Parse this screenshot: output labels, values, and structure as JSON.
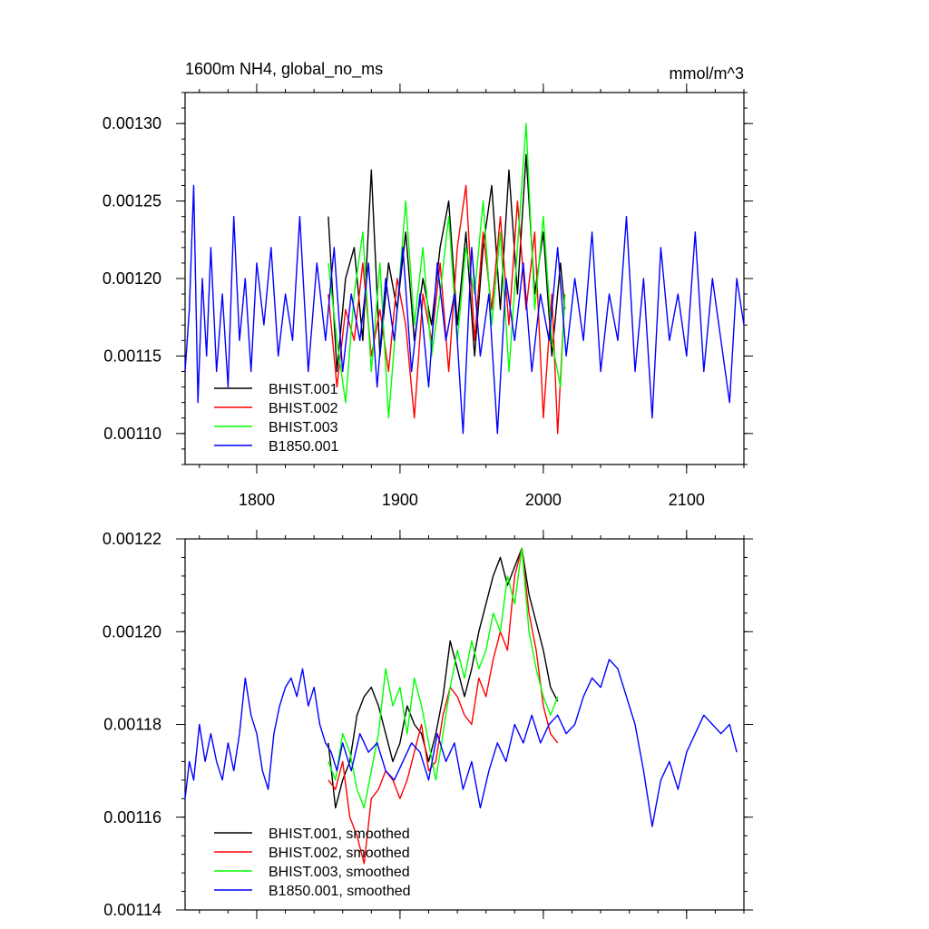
{
  "chart_data": [
    {
      "type": "line",
      "title": "1600m NH4, global_no_ms",
      "units": "mmol/m^3",
      "xlim": [
        1750,
        2140
      ],
      "ylim": [
        0.00108,
        0.00132
      ],
      "x_ticks": [
        1800,
        1900,
        2000,
        2100
      ],
      "x_tick_labels": [
        "1800",
        "1900",
        "2000",
        "2100"
      ],
      "y_ticks": [
        0.0011,
        0.00115,
        0.0012,
        0.00125,
        0.0013
      ],
      "y_tick_labels": [
        "0.00110",
        "0.00115",
        "0.00120",
        "0.00125",
        "0.00130"
      ],
      "legend_position": "bottom-left",
      "series": [
        {
          "name": "BHIST.001",
          "color": "#000000",
          "x": [
            1850,
            1856,
            1862,
            1868,
            1874,
            1880,
            1886,
            1892,
            1898,
            1904,
            1910,
            1916,
            1922,
            1928,
            1934,
            1940,
            1946,
            1952,
            1958,
            1964,
            1970,
            1976,
            1982,
            1988,
            1994,
            2000,
            2006,
            2012,
            2015
          ],
          "y": [
            0.00124,
            0.00114,
            0.0012,
            0.00122,
            0.00116,
            0.00127,
            0.00115,
            0.00121,
            0.00118,
            0.00123,
            0.00116,
            0.0012,
            0.00117,
            0.00122,
            0.00125,
            0.00117,
            0.00123,
            0.00115,
            0.00122,
            0.00126,
            0.00118,
            0.00127,
            0.00119,
            0.00128,
            0.00119,
            0.00123,
            0.00115,
            0.00121,
            0.00118
          ]
        },
        {
          "name": "BHIST.002",
          "color": "#ff0000",
          "x": [
            1850,
            1856,
            1862,
            1868,
            1874,
            1880,
            1886,
            1892,
            1898,
            1904,
            1910,
            1916,
            1922,
            1928,
            1934,
            1940,
            1946,
            1952,
            1958,
            1964,
            1970,
            1976,
            1982,
            1988,
            1994,
            2000,
            2006,
            2010,
            2015
          ],
          "y": [
            0.00119,
            0.00113,
            0.00118,
            0.00116,
            0.00121,
            0.00115,
            0.00118,
            0.00114,
            0.0012,
            0.00117,
            0.00111,
            0.00119,
            0.00116,
            0.00121,
            0.00114,
            0.00122,
            0.00126,
            0.00116,
            0.00123,
            0.00118,
            0.00124,
            0.00117,
            0.00125,
            0.00118,
            0.00123,
            0.00111,
            0.00119,
            0.0011,
            0.00119
          ]
        },
        {
          "name": "BHIST.003",
          "color": "#00ff00",
          "x": [
            1850,
            1856,
            1862,
            1868,
            1874,
            1880,
            1886,
            1892,
            1898,
            1904,
            1910,
            1916,
            1922,
            1928,
            1934,
            1940,
            1946,
            1952,
            1958,
            1964,
            1970,
            1976,
            1982,
            1988,
            1994,
            2000,
            2006,
            2012,
            2015
          ],
          "y": [
            0.00121,
            0.00116,
            0.00112,
            0.00119,
            0.00123,
            0.00114,
            0.00121,
            0.00111,
            0.00118,
            0.00125,
            0.00117,
            0.00122,
            0.00115,
            0.00119,
            0.00124,
            0.00116,
            0.00122,
            0.00119,
            0.00125,
            0.00117,
            0.00123,
            0.00114,
            0.00122,
            0.0013,
            0.00118,
            0.00124,
            0.00116,
            0.00113,
            0.00119
          ]
        },
        {
          "name": "B1850.001",
          "color": "#0000ff",
          "x": [
            1750,
            1753,
            1756,
            1759,
            1762,
            1765,
            1768,
            1772,
            1776,
            1780,
            1784,
            1788,
            1792,
            1796,
            1800,
            1805,
            1810,
            1815,
            1820,
            1825,
            1830,
            1836,
            1842,
            1848,
            1854,
            1860,
            1866,
            1872,
            1878,
            1884,
            1890,
            1896,
            1902,
            1908,
            1914,
            1920,
            1926,
            1932,
            1938,
            1944,
            1950,
            1956,
            1962,
            1968,
            1974,
            1980,
            1986,
            1992,
            1998,
            2004,
            2010,
            2016,
            2022,
            2028,
            2034,
            2040,
            2046,
            2052,
            2058,
            2064,
            2070,
            2076,
            2082,
            2088,
            2094,
            2100,
            2106,
            2112,
            2118,
            2124,
            2130,
            2135,
            2140
          ],
          "y": [
            0.00114,
            0.00118,
            0.00126,
            0.00112,
            0.0012,
            0.00115,
            0.00122,
            0.00114,
            0.00119,
            0.00113,
            0.00124,
            0.00116,
            0.0012,
            0.00114,
            0.00121,
            0.00117,
            0.00122,
            0.00115,
            0.00119,
            0.00116,
            0.00124,
            0.00114,
            0.00121,
            0.00116,
            0.00122,
            0.00114,
            0.00119,
            0.00116,
            0.00121,
            0.00113,
            0.0012,
            0.00116,
            0.00122,
            0.00114,
            0.00119,
            0.00113,
            0.00121,
            0.00116,
            0.00119,
            0.0011,
            0.00122,
            0.00115,
            0.00119,
            0.0011,
            0.0012,
            0.00116,
            0.00121,
            0.00114,
            0.00119,
            0.00116,
            0.00122,
            0.00115,
            0.0012,
            0.00116,
            0.00123,
            0.00114,
            0.00119,
            0.00116,
            0.00124,
            0.00114,
            0.0012,
            0.00111,
            0.00122,
            0.00116,
            0.00119,
            0.00115,
            0.00123,
            0.00114,
            0.0012,
            0.00116,
            0.00112,
            0.0012,
            0.00117
          ]
        }
      ]
    },
    {
      "type": "line",
      "xlim": [
        1750,
        2140
      ],
      "ylim": [
        0.00114,
        0.00122
      ],
      "x_ticks": [
        1800,
        1900,
        2000,
        2100
      ],
      "y_ticks": [
        0.00114,
        0.00116,
        0.00118,
        0.0012,
        0.00122
      ],
      "y_tick_labels": [
        "0.00114",
        "0.00116",
        "0.00118",
        "0.00120",
        "0.00122"
      ],
      "legend_position": "bottom-left",
      "series": [
        {
          "name": "BHIST.001, smoothed",
          "color": "#000000",
          "x": [
            1850,
            1855,
            1860,
            1865,
            1870,
            1875,
            1880,
            1885,
            1890,
            1895,
            1900,
            1905,
            1910,
            1915,
            1920,
            1925,
            1930,
            1935,
            1940,
            1945,
            1950,
            1955,
            1960,
            1965,
            1970,
            1975,
            1980,
            1985,
            1990,
            1995,
            2000,
            2005,
            2010
          ],
          "y": [
            0.001176,
            0.001162,
            0.001168,
            0.001172,
            0.001182,
            0.001186,
            0.001188,
            0.001184,
            0.001178,
            0.001172,
            0.001176,
            0.001184,
            0.00118,
            0.001178,
            0.001172,
            0.001178,
            0.001186,
            0.001198,
            0.001192,
            0.001186,
            0.001192,
            0.0012,
            0.001206,
            0.001212,
            0.001216,
            0.00121,
            0.001214,
            0.001218,
            0.001208,
            0.001202,
            0.001196,
            0.001188,
            0.001185
          ]
        },
        {
          "name": "BHIST.002, smoothed",
          "color": "#ff0000",
          "x": [
            1850,
            1855,
            1860,
            1865,
            1870,
            1875,
            1880,
            1885,
            1890,
            1895,
            1900,
            1905,
            1910,
            1915,
            1920,
            1925,
            1930,
            1935,
            1940,
            1945,
            1950,
            1955,
            1960,
            1965,
            1970,
            1975,
            1980,
            1985,
            1990,
            1995,
            2000,
            2005,
            2010
          ],
          "y": [
            0.001168,
            0.001166,
            0.001172,
            0.00116,
            0.001156,
            0.00115,
            0.001164,
            0.001166,
            0.00117,
            0.001168,
            0.001164,
            0.001168,
            0.001174,
            0.00118,
            0.00117,
            0.001172,
            0.001182,
            0.001188,
            0.001186,
            0.001182,
            0.00118,
            0.00119,
            0.001186,
            0.001194,
            0.0012,
            0.001196,
            0.001212,
            0.001218,
            0.001204,
            0.001196,
            0.001184,
            0.001178,
            0.001176
          ]
        },
        {
          "name": "BHIST.003, smoothed",
          "color": "#00ff00",
          "x": [
            1850,
            1855,
            1860,
            1865,
            1870,
            1875,
            1880,
            1885,
            1890,
            1895,
            1900,
            1905,
            1910,
            1915,
            1920,
            1925,
            1930,
            1935,
            1940,
            1945,
            1950,
            1955,
            1960,
            1965,
            1970,
            1975,
            1980,
            1985,
            1990,
            1995,
            2000,
            2005,
            2010
          ],
          "y": [
            0.001172,
            0.001168,
            0.001178,
            0.001174,
            0.001166,
            0.001162,
            0.00117,
            0.001178,
            0.001192,
            0.001184,
            0.001188,
            0.001178,
            0.00119,
            0.001184,
            0.001176,
            0.001168,
            0.001178,
            0.001188,
            0.001196,
            0.00119,
            0.001198,
            0.001192,
            0.001196,
            0.001204,
            0.0012,
            0.001212,
            0.001206,
            0.001218,
            0.0012,
            0.001192,
            0.001186,
            0.001182,
            0.001186
          ]
        },
        {
          "name": "B1850.001, smoothed",
          "color": "#0000ff",
          "x": [
            1750,
            1753,
            1756,
            1760,
            1764,
            1768,
            1772,
            1776,
            1780,
            1784,
            1788,
            1792,
            1796,
            1800,
            1804,
            1808,
            1812,
            1816,
            1820,
            1824,
            1828,
            1832,
            1836,
            1840,
            1844,
            1848,
            1852,
            1856,
            1860,
            1866,
            1872,
            1878,
            1884,
            1890,
            1896,
            1902,
            1908,
            1914,
            1920,
            1926,
            1932,
            1938,
            1944,
            1950,
            1956,
            1962,
            1968,
            1974,
            1980,
            1986,
            1992,
            1998,
            2004,
            2010,
            2016,
            2022,
            2028,
            2034,
            2040,
            2046,
            2052,
            2058,
            2064,
            2070,
            2076,
            2082,
            2088,
            2094,
            2100,
            2106,
            2112,
            2118,
            2124,
            2130,
            2135
          ],
          "y": [
            0.001164,
            0.001172,
            0.001168,
            0.00118,
            0.001172,
            0.001178,
            0.001172,
            0.001168,
            0.001176,
            0.00117,
            0.001178,
            0.00119,
            0.001182,
            0.001178,
            0.00117,
            0.001166,
            0.001178,
            0.001184,
            0.001188,
            0.00119,
            0.001186,
            0.001192,
            0.001184,
            0.001188,
            0.00118,
            0.001176,
            0.001174,
            0.00117,
            0.001176,
            0.00117,
            0.001178,
            0.001174,
            0.001176,
            0.00117,
            0.001168,
            0.001172,
            0.001176,
            0.001174,
            0.001168,
            0.001178,
            0.001172,
            0.001176,
            0.001166,
            0.001172,
            0.001162,
            0.00117,
            0.001176,
            0.001172,
            0.00118,
            0.001176,
            0.001182,
            0.001176,
            0.00118,
            0.001182,
            0.001178,
            0.00118,
            0.001186,
            0.00119,
            0.001188,
            0.001194,
            0.001192,
            0.001186,
            0.00118,
            0.00117,
            0.001158,
            0.001168,
            0.001172,
            0.001166,
            0.001174,
            0.001178,
            0.001182,
            0.00118,
            0.001178,
            0.00118,
            0.001174
          ]
        }
      ]
    }
  ]
}
